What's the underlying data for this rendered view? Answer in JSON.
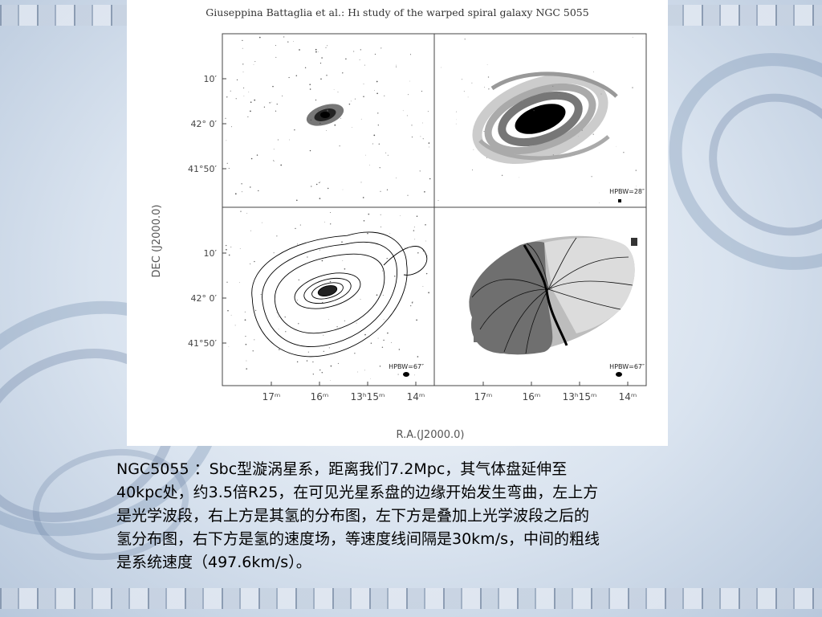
{
  "figure": {
    "header": "Giuseppina Battaglia et al.: Hı study of the warped spiral galaxy NGC 5055",
    "y_axis_label": "DEC (J2000.0)",
    "x_axis_label": "R.A.(J2000.0)",
    "y_tick_labels": [
      "10′",
      "42° 0′",
      "41°50′"
    ],
    "x_tick_labels": [
      "17ᵐ",
      "16ᵐ",
      "13ʰ15ᵐ",
      "14ᵐ"
    ],
    "beam_labels": {
      "top_right": "HPBW=28″",
      "bottom_left": "HPBW=67″",
      "bottom_right": "HPBW=67″"
    }
  },
  "caption": {
    "lines": [
      "NGC5055 ：Sbc型漩涡星系，距离我们7.2Mpc，其气体盘延伸至",
      "40kpc处，约3.5倍R25，在可见光星系盘的边缘开始发生弯曲，左上方",
      "是光学波段，右上方是其氢的分布图，左下方是叠加上光学波段之后的",
      "氢分布图，右下方是氢的速度场，等速度线间隔是30km/s，中间的粗线",
      "是系统速度（497.6km/s）。"
    ]
  },
  "colors": {
    "background": "#dfe8f3",
    "figure_background": "#ffffff",
    "ink": "#000000"
  }
}
